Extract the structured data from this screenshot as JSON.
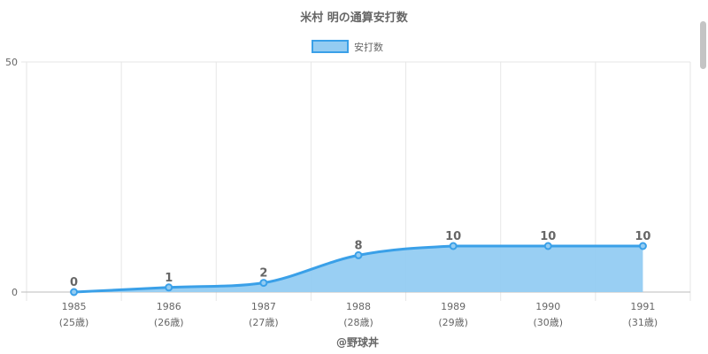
{
  "chart_data": {
    "type": "area",
    "title": "米村 明の通算安打数",
    "legend": {
      "label": "安打数",
      "position": "top"
    },
    "categories": [
      "1985",
      "1986",
      "1987",
      "1988",
      "1989",
      "1990",
      "1991"
    ],
    "sub_labels": [
      "(25歳)",
      "(26歳)",
      "(27歳)",
      "(28歳)",
      "(29歳)",
      "(30歳)",
      "(31歳)"
    ],
    "series": [
      {
        "name": "安打数",
        "values": [
          0,
          1,
          2,
          8,
          10,
          10,
          10
        ]
      }
    ],
    "ylim": [
      0,
      50
    ],
    "y_ticks": [
      "0",
      "50"
    ],
    "grid": true,
    "colors": {
      "line": "#3aa0e8",
      "fill": "#94ccf2",
      "grid": "#e6e6e6",
      "text": "#666666"
    }
  },
  "credit": "@野球丼"
}
